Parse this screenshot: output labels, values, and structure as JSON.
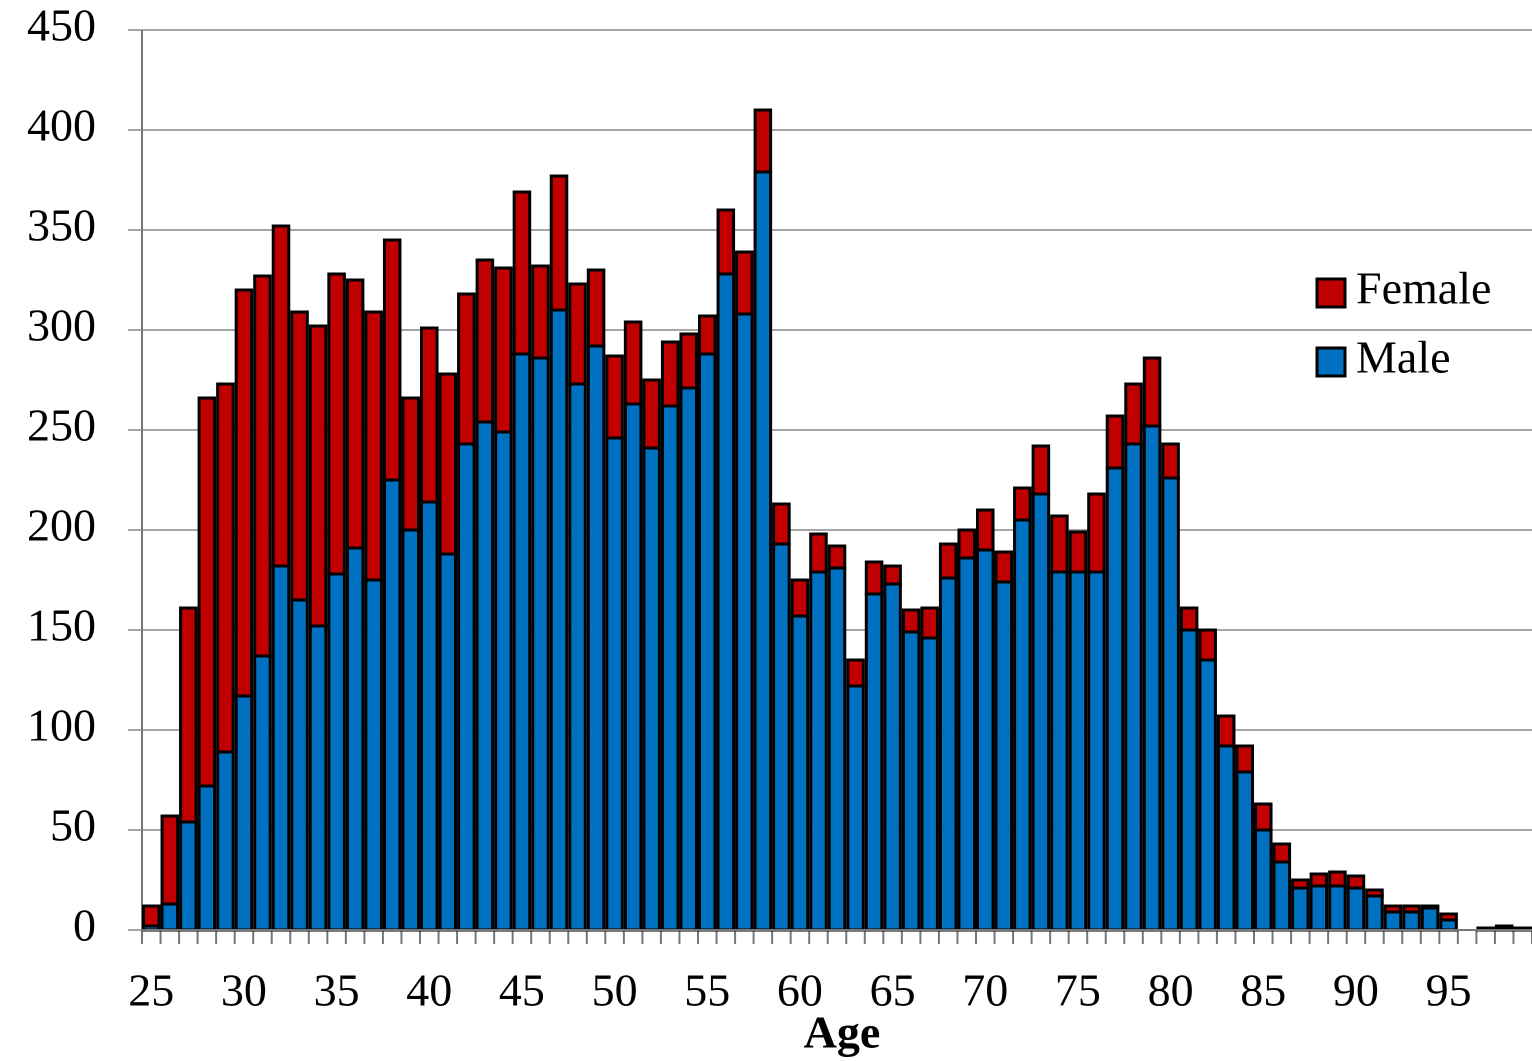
{
  "chart_data": {
    "type": "stacked_bar",
    "x_label": "Age",
    "categories": [
      25,
      null,
      null,
      null,
      null,
      30,
      null,
      null,
      null,
      null,
      35,
      null,
      null,
      null,
      null,
      40,
      null,
      null,
      null,
      null,
      45,
      null,
      null,
      null,
      null,
      50,
      null,
      null,
      null,
      null,
      55,
      null,
      null,
      null,
      null,
      60,
      null,
      null,
      null,
      null,
      65,
      null,
      null,
      null,
      null,
      70,
      null,
      null,
      null,
      null,
      75,
      null,
      null,
      null,
      null,
      80,
      null,
      null,
      null,
      null,
      85,
      null,
      null,
      null,
      null,
      90,
      null,
      null,
      null,
      null,
      95,
      null,
      null,
      null,
      null
    ],
    "series": [
      {
        "name": "Female",
        "color": "#c00000",
        "values": [
          10,
          44,
          107,
          194,
          184,
          203,
          190,
          170,
          144,
          150,
          150,
          134,
          134,
          120,
          66,
          87,
          90,
          75,
          81,
          82,
          81,
          46,
          67,
          50,
          38,
          41,
          41,
          34,
          32,
          27,
          19,
          32,
          31,
          31,
          20,
          18,
          19,
          11,
          13,
          16,
          9,
          11,
          15,
          17,
          14,
          20,
          15,
          16,
          24,
          28,
          20,
          39,
          26,
          30,
          34,
          17,
          11,
          15,
          15,
          13,
          13,
          9,
          4,
          6,
          7,
          6,
          3,
          3,
          3,
          1,
          3,
          0,
          0,
          1,
          0
        ]
      },
      {
        "name": "Male",
        "color": "#0070c0",
        "values": [
          2,
          13,
          54,
          72,
          89,
          117,
          137,
          182,
          165,
          152,
          178,
          191,
          175,
          225,
          200,
          214,
          188,
          243,
          254,
          249,
          288,
          286,
          310,
          273,
          292,
          246,
          263,
          241,
          262,
          271,
          288,
          328,
          308,
          379,
          193,
          157,
          179,
          181,
          122,
          168,
          173,
          149,
          146,
          176,
          186,
          190,
          174,
          205,
          218,
          179,
          179,
          179,
          231,
          243,
          252,
          226,
          150,
          135,
          92,
          79,
          50,
          34,
          21,
          22,
          22,
          21,
          17,
          9,
          9,
          11,
          5,
          0,
          1,
          1,
          1
        ]
      }
    ],
    "ylim": [
      0,
      450
    ],
    "yticks": [
      0,
      50,
      100,
      150,
      200,
      250,
      300,
      350,
      400,
      450
    ],
    "grid": true,
    "legend": "right"
  }
}
